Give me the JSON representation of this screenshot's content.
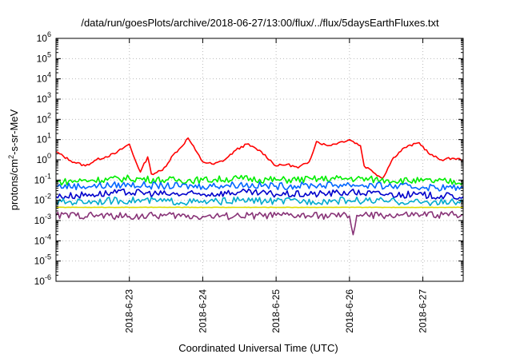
{
  "chart_data": {
    "type": "line",
    "title": "/data/run/goesPlots/archive/2018-06-27/13:00/flux/../flux/5daysEarthFluxes.txt",
    "xlabel": "Coordinated Universal Time (UTC)",
    "ylabel": {
      "base": "protons/cm",
      "sup": "2",
      "rest": "-s-sr-MeV"
    },
    "yscale": "log",
    "ylim": [
      1e-06,
      1000000.0
    ],
    "xlim": [
      "2018-06-22 00:00",
      "2018-06-27 13:00"
    ],
    "grid": true,
    "legend": "none",
    "x_ticks": [
      "2018-6-23",
      "2018-6-24",
      "2018-6-25",
      "2018-6-26",
      "2018-6-27"
    ],
    "y_ticks": [
      {
        "base": "10",
        "exp": "-6"
      },
      {
        "base": "10",
        "exp": "-5"
      },
      {
        "base": "10",
        "exp": "-4"
      },
      {
        "base": "10",
        "exp": "-3"
      },
      {
        "base": "10",
        "exp": "-2"
      },
      {
        "base": "10",
        "exp": "-1"
      },
      {
        "base": "10",
        "exp": "0"
      },
      {
        "base": "10",
        "exp": "1"
      },
      {
        "base": "10",
        "exp": "2"
      },
      {
        "base": "10",
        "exp": "3"
      },
      {
        "base": "10",
        "exp": "4"
      },
      {
        "base": "10",
        "exp": "5"
      },
      {
        "base": "10",
        "exp": "6"
      }
    ],
    "series": [
      {
        "color": "#ff0000",
        "x": [
          0,
          0.2,
          0.4,
          0.55,
          0.8,
          1.0,
          1.05,
          1.15,
          1.25,
          1.3,
          1.45,
          1.6,
          1.7,
          1.8,
          1.9,
          2.0,
          2.15,
          2.3,
          2.45,
          2.6,
          2.8,
          3.0,
          3.15,
          3.3,
          3.45,
          3.55,
          3.7,
          3.85,
          4.0,
          4.15,
          4.2,
          4.3,
          4.45,
          4.6,
          4.75,
          4.95,
          5.1,
          5.25,
          5.4,
          5.55
        ],
        "y": [
          2.5,
          0.9,
          0.5,
          1.0,
          2.0,
          6.0,
          1.8,
          0.25,
          1.4,
          0.2,
          0.3,
          1.8,
          4.0,
          12.0,
          3.0,
          0.8,
          0.6,
          1.0,
          3.0,
          6.0,
          2.5,
          0.5,
          0.6,
          0.4,
          0.8,
          8.0,
          5.0,
          7.0,
          10.0,
          5.0,
          0.5,
          0.3,
          0.12,
          1.3,
          4.0,
          7.0,
          1.8,
          1.0,
          1.2,
          1.0
        ]
      },
      {
        "color": "#00ee00",
        "x": [
          0,
          0.5,
          1.0,
          1.5,
          2.0,
          2.5,
          3.0,
          3.5,
          4.0,
          4.5,
          5.0,
          5.55
        ],
        "y": [
          0.08,
          0.1,
          0.12,
          0.1,
          0.1,
          0.12,
          0.1,
          0.11,
          0.12,
          0.1,
          0.09,
          0.08
        ]
      },
      {
        "color": "#0066ff",
        "x": [
          0,
          0.5,
          1.0,
          1.5,
          2.0,
          2.5,
          3.0,
          3.5,
          4.0,
          4.5,
          5.0,
          5.55
        ],
        "y": [
          0.05,
          0.05,
          0.06,
          0.05,
          0.05,
          0.06,
          0.05,
          0.055,
          0.06,
          0.05,
          0.045,
          0.04
        ]
      },
      {
        "color": "#0000cc",
        "x": [
          0,
          0.5,
          1.0,
          1.5,
          2.0,
          2.5,
          3.0,
          3.5,
          4.0,
          4.5,
          5.0,
          5.55
        ],
        "y": [
          0.015,
          0.02,
          0.025,
          0.02,
          0.02,
          0.025,
          0.02,
          0.02,
          0.025,
          0.02,
          0.018,
          0.015
        ]
      },
      {
        "color": "#00aacc",
        "x": [
          0,
          0.5,
          1.0,
          1.5,
          2.0,
          2.5,
          3.0,
          3.5,
          4.0,
          4.5,
          5.0,
          5.55
        ],
        "y": [
          0.008,
          0.009,
          0.01,
          0.009,
          0.008,
          0.01,
          0.009,
          0.009,
          0.01,
          0.009,
          0.008,
          0.008
        ]
      },
      {
        "color": "#dddd00",
        "x": [
          0,
          0.5,
          1.0,
          1.5,
          2.0,
          2.5,
          3.0,
          3.5,
          4.0,
          4.5,
          5.0,
          5.55
        ],
        "y": [
          0.0045,
          0.0045,
          0.0045,
          0.0045,
          0.0045,
          0.0045,
          0.0045,
          0.0045,
          0.0045,
          0.0045,
          0.0045,
          0.0045
        ]
      },
      {
        "color": "#883377",
        "x": [
          0,
          0.5,
          1.0,
          1.5,
          2.0,
          2.5,
          3.0,
          3.5,
          4.0,
          4.05,
          4.1,
          4.5,
          5.0,
          5.55
        ],
        "y": [
          0.0018,
          0.0018,
          0.0016,
          0.0018,
          0.0016,
          0.0017,
          0.0018,
          0.0017,
          0.0017,
          0.0002,
          0.0018,
          0.0018,
          0.0019,
          0.002
        ]
      }
    ]
  }
}
